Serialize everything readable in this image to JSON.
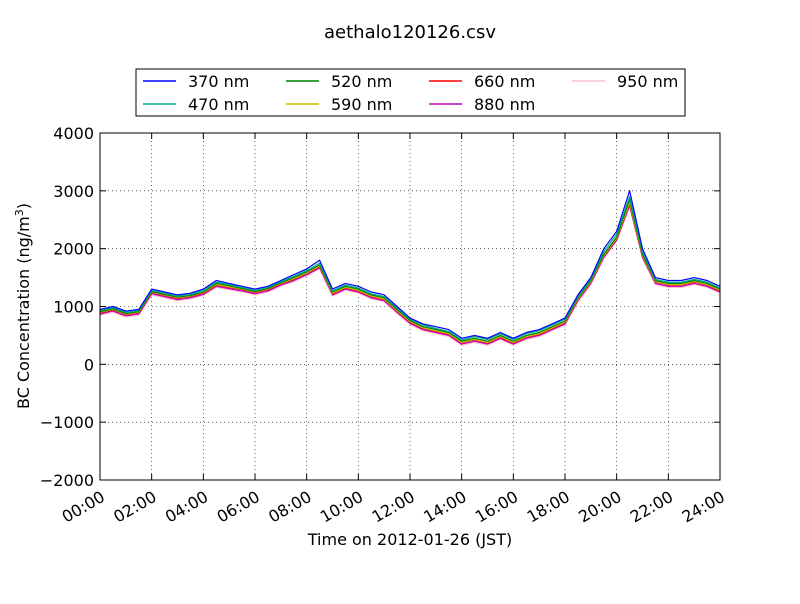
{
  "chart_data": {
    "type": "line",
    "title": "aethalo120126.csv",
    "xlabel": "Time on 2012-01-26 (JST)",
    "ylabel": "BC Concentration (ng/m³)",
    "ylabel_main": "BC Concentration (ng/m",
    "ylabel_sup": "3",
    "ylabel_end": ")",
    "xlim": [
      0,
      24
    ],
    "ylim": [
      -2000,
      4000
    ],
    "grid": true,
    "legend_position": "top",
    "x_ticks": [
      0,
      2,
      4,
      6,
      8,
      10,
      12,
      14,
      16,
      18,
      20,
      22,
      24
    ],
    "x_tick_labels": [
      "00:00",
      "02:00",
      "04:00",
      "06:00",
      "08:00",
      "10:00",
      "12:00",
      "14:00",
      "16:00",
      "18:00",
      "20:00",
      "22:00",
      "24:00"
    ],
    "y_ticks": [
      -2000,
      -1000,
      0,
      1000,
      2000,
      3000,
      4000
    ],
    "y_tick_labels": [
      "−2000",
      "−1000",
      "0",
      "1000",
      "2000",
      "3000",
      "4000"
    ],
    "x": [
      0,
      0.5,
      1,
      1.5,
      2,
      2.5,
      3,
      3.5,
      4,
      4.5,
      5,
      5.5,
      6,
      6.5,
      7,
      7.5,
      8,
      8.5,
      9,
      9.5,
      10,
      10.5,
      11,
      11.5,
      12,
      12.5,
      13,
      13.5,
      14,
      14.5,
      15,
      15.5,
      16,
      16.5,
      17,
      17.5,
      18,
      18.5,
      19,
      19.5,
      20,
      20.5,
      21,
      21.5,
      22,
      22.5,
      23,
      23.5,
      24
    ],
    "series": [
      {
        "name": "370 nm",
        "color": "#0000ff",
        "values": [
          950,
          1000,
          920,
          950,
          1300,
          1250,
          1200,
          1230,
          1300,
          1450,
          1400,
          1350,
          1300,
          1350,
          1450,
          1550,
          1650,
          1800,
          1300,
          1400,
          1350,
          1250,
          1200,
          1000,
          800,
          700,
          650,
          600,
          450,
          500,
          450,
          550,
          450,
          550,
          600,
          700,
          800,
          1200,
          1500,
          2000,
          2300,
          3000,
          2000,
          1500,
          1450,
          1450,
          1500,
          1450,
          1350
        ]
      },
      {
        "name": "470 nm",
        "color": "#00a88a",
        "values": [
          930,
          980,
          900,
          930,
          1280,
          1230,
          1180,
          1210,
          1280,
          1420,
          1380,
          1330,
          1280,
          1330,
          1430,
          1520,
          1620,
          1750,
          1270,
          1370,
          1320,
          1220,
          1170,
          970,
          780,
          680,
          620,
          570,
          420,
          480,
          430,
          530,
          430,
          530,
          580,
          680,
          780,
          1170,
          1470,
          1950,
          2250,
          2900,
          1950,
          1470,
          1420,
          1420,
          1470,
          1420,
          1320
        ]
      },
      {
        "name": "520 nm",
        "color": "#008000",
        "values": [
          910,
          960,
          880,
          910,
          1260,
          1210,
          1160,
          1190,
          1250,
          1400,
          1360,
          1310,
          1260,
          1310,
          1410,
          1500,
          1600,
          1720,
          1250,
          1350,
          1300,
          1200,
          1150,
          950,
          760,
          650,
          600,
          550,
          400,
          450,
          400,
          500,
          400,
          500,
          550,
          650,
          750,
          1150,
          1450,
          1900,
          2200,
          2850,
          1900,
          1450,
          1400,
          1400,
          1450,
          1400,
          1300
        ]
      },
      {
        "name": "590 nm",
        "color": "#bfbf00",
        "values": [
          900,
          950,
          870,
          900,
          1250,
          1200,
          1150,
          1180,
          1240,
          1380,
          1340,
          1300,
          1250,
          1300,
          1400,
          1480,
          1580,
          1700,
          1230,
          1330,
          1280,
          1180,
          1130,
          930,
          740,
          630,
          580,
          530,
          380,
          430,
          380,
          480,
          380,
          480,
          530,
          630,
          730,
          1130,
          1430,
          1880,
          2180,
          2800,
          1880,
          1430,
          1380,
          1380,
          1430,
          1380,
          1280
        ]
      },
      {
        "name": "660 nm",
        "color": "#ff0000",
        "values": [
          890,
          940,
          860,
          890,
          1240,
          1190,
          1140,
          1170,
          1230,
          1370,
          1330,
          1290,
          1240,
          1290,
          1390,
          1470,
          1570,
          1690,
          1220,
          1320,
          1270,
          1170,
          1120,
          920,
          730,
          620,
          570,
          520,
          370,
          420,
          370,
          470,
          370,
          470,
          520,
          620,
          720,
          1120,
          1420,
          1870,
          2170,
          2780,
          1870,
          1420,
          1370,
          1370,
          1420,
          1370,
          1270
        ]
      },
      {
        "name": "880 nm",
        "color": "#bf00bf",
        "values": [
          870,
          920,
          840,
          870,
          1220,
          1170,
          1120,
          1150,
          1210,
          1350,
          1310,
          1270,
          1220,
          1270,
          1370,
          1450,
          1550,
          1670,
          1200,
          1300,
          1250,
          1150,
          1100,
          900,
          710,
          600,
          550,
          500,
          350,
          400,
          350,
          450,
          350,
          450,
          500,
          600,
          700,
          1100,
          1400,
          1850,
          2150,
          2750,
          1850,
          1400,
          1350,
          1350,
          1400,
          1350,
          1250
        ]
      },
      {
        "name": "950 nm",
        "color": "#ffc0cb",
        "values": [
          850,
          900,
          820,
          850,
          1200,
          1150,
          1100,
          1130,
          1190,
          1330,
          1290,
          1250,
          1200,
          1250,
          1350,
          1430,
          1530,
          1650,
          1180,
          1280,
          1230,
          1130,
          1080,
          880,
          690,
          580,
          530,
          480,
          330,
          380,
          330,
          430,
          330,
          430,
          480,
          580,
          680,
          1080,
          1380,
          1830,
          2130,
          2730,
          1830,
          1380,
          1330,
          1330,
          1380,
          1330,
          1230
        ]
      }
    ]
  }
}
